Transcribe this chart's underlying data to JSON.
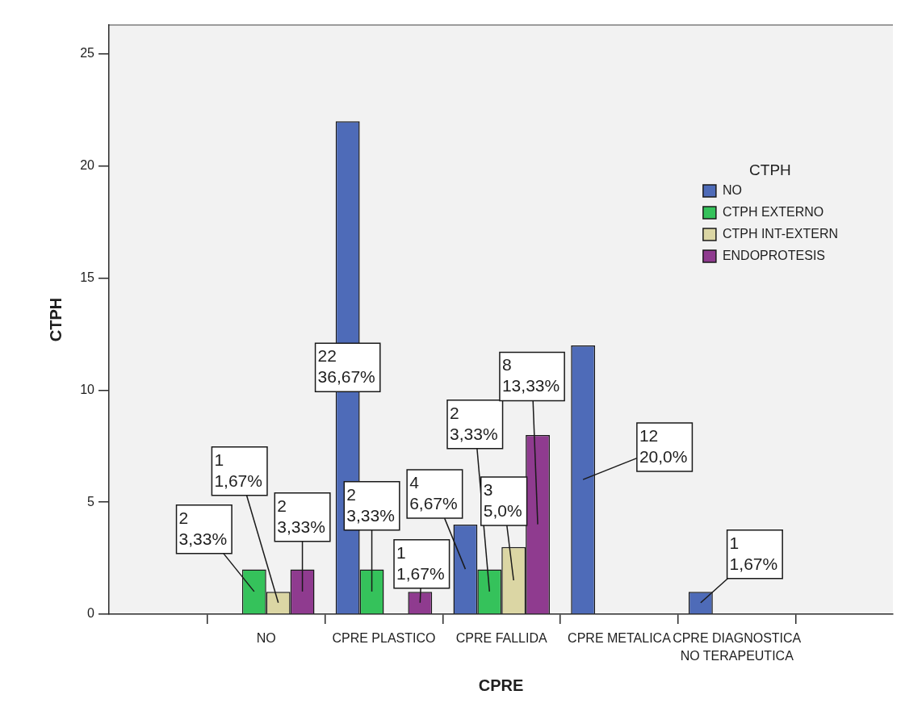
{
  "chart_data": {
    "type": "bar",
    "xlabel": "CPRE",
    "ylabel": "CTPH",
    "legend_title": "CTPH",
    "legend": "top right",
    "categories": [
      "NO",
      "CPRE PLASTICO",
      "CPRE FALLIDA",
      "CPRE METALICA",
      "CPRE DIAGNOSTICA NO TERAPEUTICA"
    ],
    "ylim": [
      0,
      26.3
    ],
    "yticks": [
      0,
      5,
      10,
      15,
      20,
      25
    ],
    "series": [
      {
        "name": "NO",
        "color": "#4e6bb8",
        "values": [
          null,
          22,
          4,
          12,
          1
        ],
        "value_labels": [
          null,
          "22\n36,67%",
          "4\n6,67%",
          "12\n20,0%",
          "1\n1,67%"
        ]
      },
      {
        "name": "CTPH EXTERNO",
        "color": "#35c25b",
        "values": [
          2,
          2,
          2,
          null,
          null
        ],
        "value_labels": [
          "2\n3,33%",
          "2\n3,33%",
          "2\n3,33%",
          null,
          null
        ]
      },
      {
        "name": "CTPH INT-EXTERN",
        "color": "#dbd6a4",
        "values": [
          1,
          null,
          3,
          null,
          null
        ],
        "value_labels": [
          "1\n1,67%",
          null,
          "3\n5,0%",
          null,
          null
        ]
      },
      {
        "name": "ENDOPROTESIS",
        "color": "#8f3b8f",
        "values": [
          2,
          1,
          8,
          null,
          null
        ],
        "value_labels": [
          "2\n3,33%",
          "1\n1,67%",
          "8\n13,33%",
          null,
          null
        ]
      }
    ]
  }
}
